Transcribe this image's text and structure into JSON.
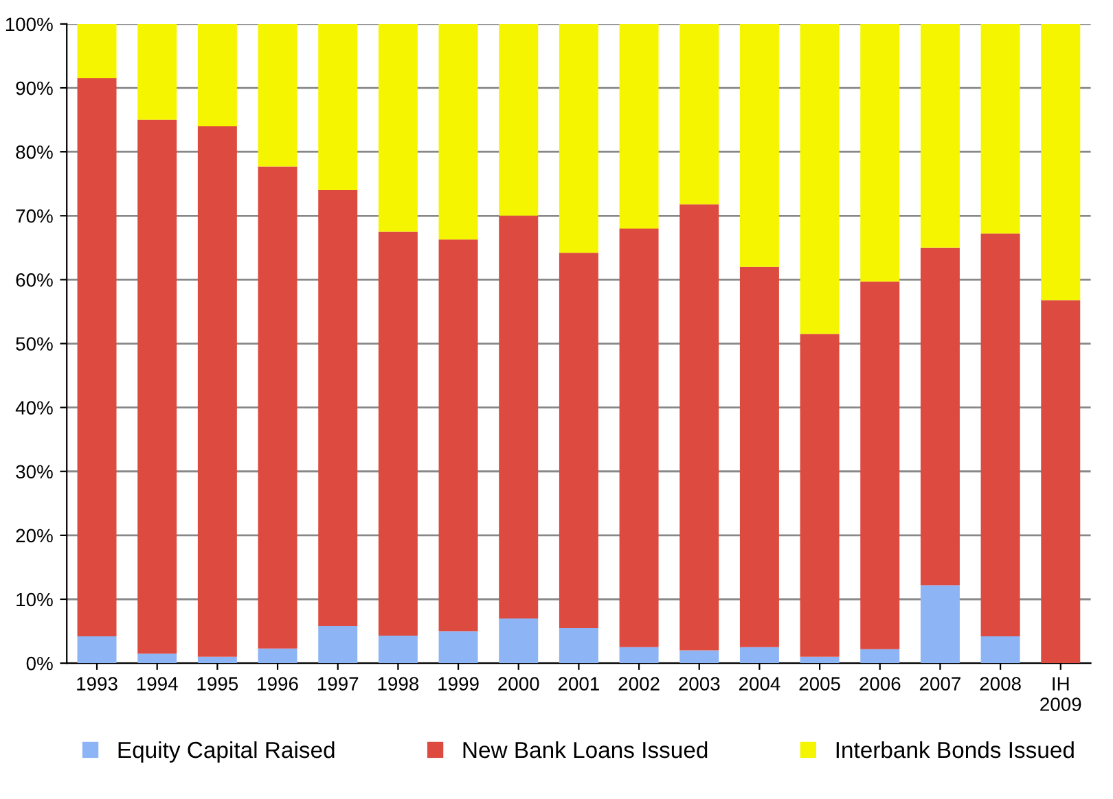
{
  "chart_data": {
    "type": "bar",
    "stacked": true,
    "categories": [
      "1993",
      "1994",
      "1995",
      "1996",
      "1997",
      "1998",
      "1999",
      "2000",
      "2001",
      "2002",
      "2003",
      "2004",
      "2005",
      "2006",
      "2007",
      "2008",
      "IH\n2009"
    ],
    "series": [
      {
        "name": "Equity Capital Raised",
        "color": "#8db4f5",
        "values": [
          4.2,
          1.5,
          1.0,
          2.3,
          5.8,
          4.3,
          5.0,
          7.0,
          5.5,
          2.5,
          2.0,
          2.5,
          1.0,
          2.2,
          12.2,
          4.2,
          0
        ]
      },
      {
        "name": "New Bank Loans Issued",
        "color": "#dd4a3f",
        "values": [
          87.3,
          83.5,
          83.0,
          75.4,
          68.2,
          63.2,
          61.3,
          63.0,
          58.7,
          65.5,
          69.8,
          59.5,
          50.5,
          57.5,
          52.8,
          63.0,
          56.8
        ]
      },
      {
        "name": "Interbank Bonds Issued",
        "color": "#f5f500",
        "values": [
          8.5,
          15,
          16,
          22.3,
          26,
          32.5,
          33.7,
          30,
          35.8,
          32,
          28.2,
          38,
          48.5,
          40.3,
          35,
          32.8,
          43.2
        ]
      }
    ],
    "ylim": [
      0,
      100
    ],
    "yticks": [
      {
        "value": 0,
        "label": "0%"
      },
      {
        "value": 10,
        "label": "10%"
      },
      {
        "value": 20,
        "label": "20%"
      },
      {
        "value": 30,
        "label": "30%"
      },
      {
        "value": 40,
        "label": "40%"
      },
      {
        "value": 50,
        "label": "50%"
      },
      {
        "value": 60,
        "label": "60%"
      },
      {
        "value": 70,
        "label": "70%"
      },
      {
        "value": 80,
        "label": "80%"
      },
      {
        "value": 90,
        "label": "90%"
      },
      {
        "value": 100,
        "label": "100%"
      }
    ],
    "grid": "y",
    "legend": "bottom"
  }
}
